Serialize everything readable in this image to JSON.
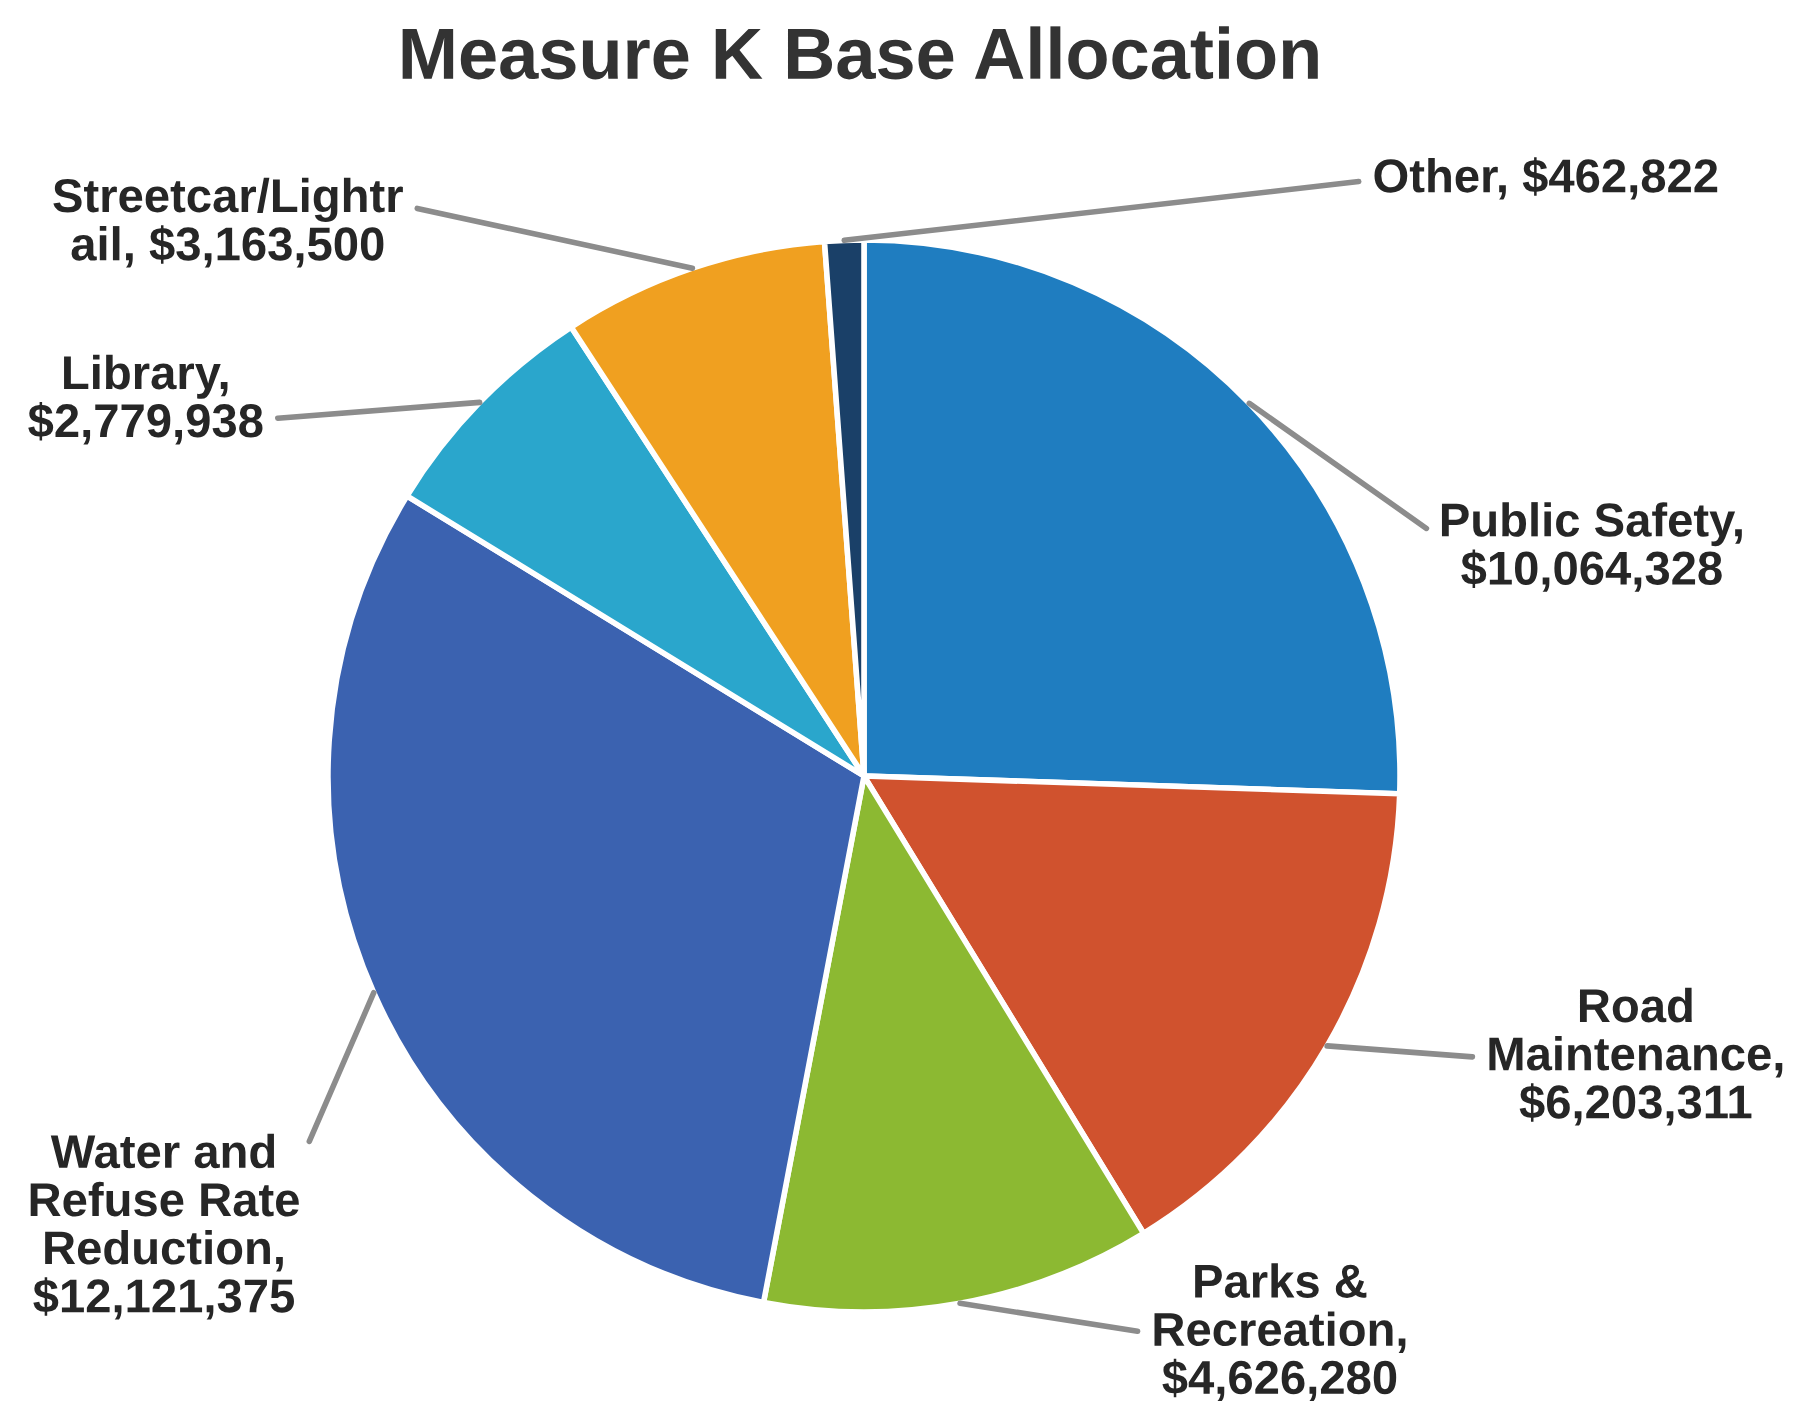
{
  "chart_data": {
    "type": "pie",
    "title": "Measure K Base Allocation",
    "categories": [
      "Public Safety, $10,064,328",
      "Road Maintenance, $6,203,311",
      "Parks & Recreation, $4,626,280",
      "Water and Refuse Rate Reduction, $12,121,375",
      "Library, $2,779,938",
      "Streetcar/Lightrail, $3,163,500",
      "Other, $462,822"
    ],
    "values": [
      10064328,
      6203311,
      4626280,
      12121375,
      2779938,
      3163500,
      462822
    ],
    "colors": [
      "#1f7dc0",
      "#d0522e",
      "#8cb932",
      "#3b62b0",
      "#2aa6cc",
      "#f0a020",
      "#1a4068"
    ]
  }
}
